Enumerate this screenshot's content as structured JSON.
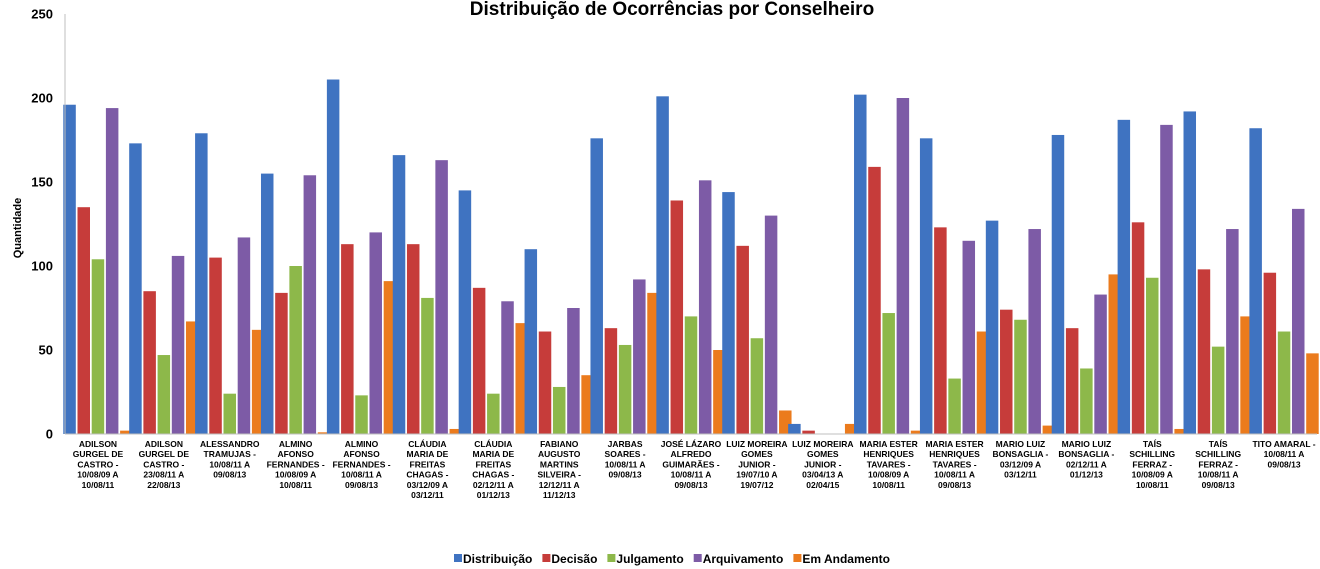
{
  "chart_data": {
    "type": "bar",
    "title": "Distribuição de Ocorrências por Conselheiro",
    "xlabel": "",
    "ylabel": "Quantidade",
    "ylim": [
      0,
      250
    ],
    "yticks": [
      0,
      50,
      100,
      150,
      200,
      250
    ],
    "grid": false,
    "legend_position": "bottom",
    "categories": [
      [
        "ADILSON",
        "GURGEL DE",
        "CASTRO -",
        "10/08/09 A",
        "10/08/11"
      ],
      [
        "ADILSON",
        "GURGEL DE",
        "CASTRO -",
        "23/08/11 A",
        "22/08/13"
      ],
      [
        "ALESSANDRO",
        "TRAMUJAS -",
        "10/08/11 A",
        "09/08/13"
      ],
      [
        "ALMINO",
        "AFONSO",
        "FERNANDES -",
        "10/08/09 A",
        "10/08/11"
      ],
      [
        "ALMINO",
        "AFONSO",
        "FERNANDES -",
        "10/08/11 A",
        "09/08/13"
      ],
      [
        "CLÁUDIA",
        "MARIA DE",
        "FREITAS",
        "CHAGAS -",
        "03/12/09 A",
        "03/12/11"
      ],
      [
        "CLÁUDIA",
        "MARIA DE",
        "FREITAS",
        "CHAGAS -",
        "02/12/11 A",
        "01/12/13"
      ],
      [
        "FABIANO",
        "AUGUSTO",
        "MARTINS",
        "SILVEIRA -",
        "12/12/11 A",
        "11/12/13"
      ],
      [
        "JARBAS",
        "SOARES -",
        "10/08/11 A",
        "09/08/13"
      ],
      [
        "JOSÉ LÁZARO",
        "ALFREDO",
        "GUIMARÃES -",
        "10/08/11 A",
        "09/08/13"
      ],
      [
        "LUIZ MOREIRA",
        "GOMES",
        "JUNIOR -",
        "19/07/10 A",
        "19/07/12"
      ],
      [
        "LUIZ MOREIRA",
        "GOMES",
        "JUNIOR -",
        "03/04/13 A",
        "02/04/15"
      ],
      [
        "MARIA ESTER",
        "HENRIQUES",
        "TAVARES -",
        "10/08/09 A",
        "10/08/11"
      ],
      [
        "MARIA ESTER",
        "HENRIQUES",
        "TAVARES -",
        "10/08/11 A",
        "09/08/13"
      ],
      [
        "MARIO LUIZ",
        "BONSAGLIA -",
        "03/12/09 A",
        "03/12/11"
      ],
      [
        "MARIO LUIZ",
        "BONSAGLIA -",
        "02/12/11 A",
        "01/12/13"
      ],
      [
        "TAÍS",
        "SCHILLING",
        "FERRAZ -",
        "10/08/09 A",
        "10/08/11"
      ],
      [
        "TAÍS",
        "SCHILLING",
        "FERRAZ -",
        "10/08/11 A",
        "09/08/13"
      ],
      [
        "TITO AMARAL -",
        "10/08/11 A",
        "09/08/13"
      ]
    ],
    "series": [
      {
        "name": "Distribuição",
        "color": "#3F73C1",
        "values": [
          196,
          173,
          179,
          155,
          211,
          166,
          145,
          110,
          176,
          201,
          144,
          6,
          202,
          176,
          127,
          178,
          187,
          192,
          182
        ]
      },
      {
        "name": "Decisão",
        "color": "#C63C3A",
        "values": [
          135,
          85,
          105,
          84,
          113,
          113,
          87,
          61,
          63,
          139,
          112,
          2,
          159,
          123,
          74,
          63,
          126,
          98,
          96
        ]
      },
      {
        "name": "Julgamento",
        "color": "#8DB84A",
        "values": [
          104,
          47,
          24,
          100,
          23,
          81,
          24,
          28,
          53,
          70,
          57,
          0,
          72,
          33,
          68,
          39,
          93,
          52,
          61
        ]
      },
      {
        "name": "Arquivamento",
        "color": "#7D5BA6",
        "values": [
          194,
          106,
          117,
          154,
          120,
          163,
          79,
          75,
          92,
          151,
          130,
          0,
          200,
          115,
          122,
          83,
          184,
          122,
          134
        ]
      },
      {
        "name": "Em Andamento",
        "color": "#EB7B1D",
        "values": [
          2,
          67,
          62,
          1,
          91,
          3,
          66,
          35,
          84,
          50,
          14,
          6,
          2,
          61,
          5,
          95,
          3,
          70,
          48
        ]
      }
    ]
  }
}
